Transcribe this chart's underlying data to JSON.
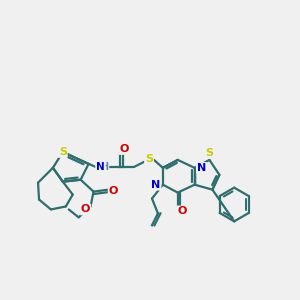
{
  "background_color": "#f0f0f0",
  "bond_color": "#2d6e6e",
  "bond_width": 1.6,
  "atom_colors": {
    "S": "#cccc00",
    "N": "#0000cc",
    "O": "#cc0000",
    "H": "#6688aa",
    "C": "#2d6e6e"
  },
  "figsize": [
    3.0,
    3.0
  ],
  "dpi": 100
}
